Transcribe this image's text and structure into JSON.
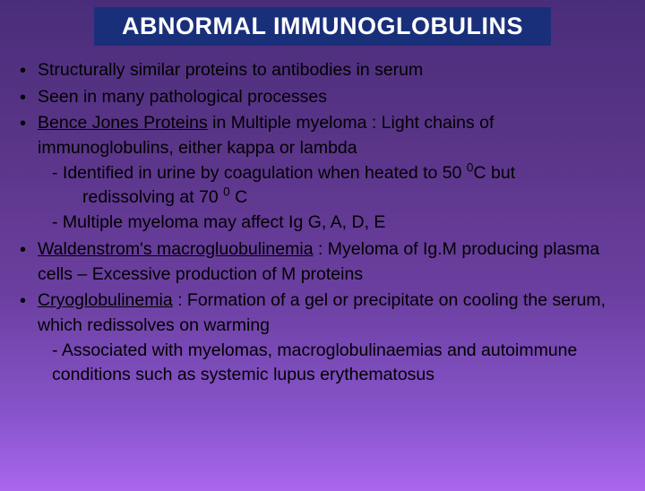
{
  "title": "ABNORMAL IMMUNOGLOBULINS",
  "b1": "Structurally similar proteins to antibodies in serum",
  "b2": "Seen in many pathological processes",
  "b3_u": "Bence Jones Proteins",
  "b3_rest": " in Multiple myeloma :  Light chains of immunoglobulins, either kappa or lambda",
  "b3_s1a": "- Identified in urine by coagulation when heated to 50 ",
  "b3_s1sup1": "0",
  "b3_s1b": "C but",
  "b3_s1c": "redissolving at 70 ",
  "b3_s1sup2": "0",
  "b3_s1d": " C",
  "b3_s2": "- Multiple myeloma may affect Ig G, A, D, E",
  "b4_u": "Waldenstrom's macrogluobulinemia",
  "b4_rest": " : Myeloma of Ig.M producing plasma cells –  Excessive production of M proteins",
  "b5_u": "Cryoglobulinemia",
  "b5_rest": " : Formation of a gel or precipitate on cooling the serum, which redissolves on warming",
  "b5_s1": "- Associated with myelomas, macroglobulinaemias and autoimmune conditions such as systemic lupus erythematosus"
}
